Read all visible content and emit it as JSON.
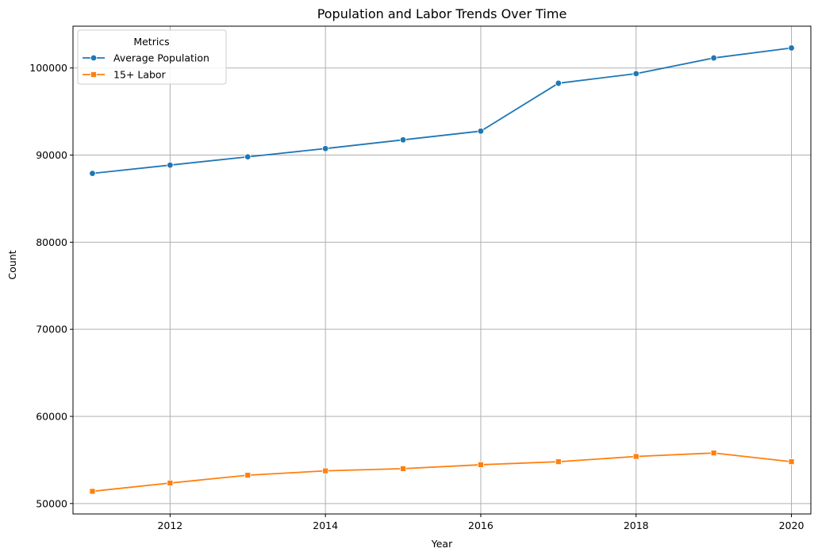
{
  "chart_data": {
    "type": "line",
    "title": "Population and Labor Trends Over Time",
    "xlabel": "Year",
    "ylabel": "Count",
    "xlim": [
      2010.75,
      2020.25
    ],
    "ylim": [
      48800,
      104800
    ],
    "xticks": [
      2012,
      2014,
      2016,
      2018,
      2020
    ],
    "yticks": [
      50000,
      60000,
      70000,
      80000,
      90000,
      100000
    ],
    "grid": true,
    "legend": {
      "title": "Metrics",
      "position": "top-left"
    },
    "x": [
      2011,
      2012,
      2013,
      2014,
      2015,
      2016,
      2017,
      2018,
      2019,
      2020
    ],
    "series": [
      {
        "name": "Average Population",
        "color": "#1f77b4",
        "marker": "circle",
        "values": [
          87900,
          88850,
          89800,
          90750,
          91750,
          92750,
          98250,
          99350,
          101150,
          102300
        ]
      },
      {
        "name": "15+ Labor",
        "color": "#ff7f0e",
        "marker": "square",
        "values": [
          51400,
          52350,
          53250,
          53750,
          54000,
          54450,
          54800,
          55400,
          55800,
          54800
        ]
      }
    ]
  }
}
